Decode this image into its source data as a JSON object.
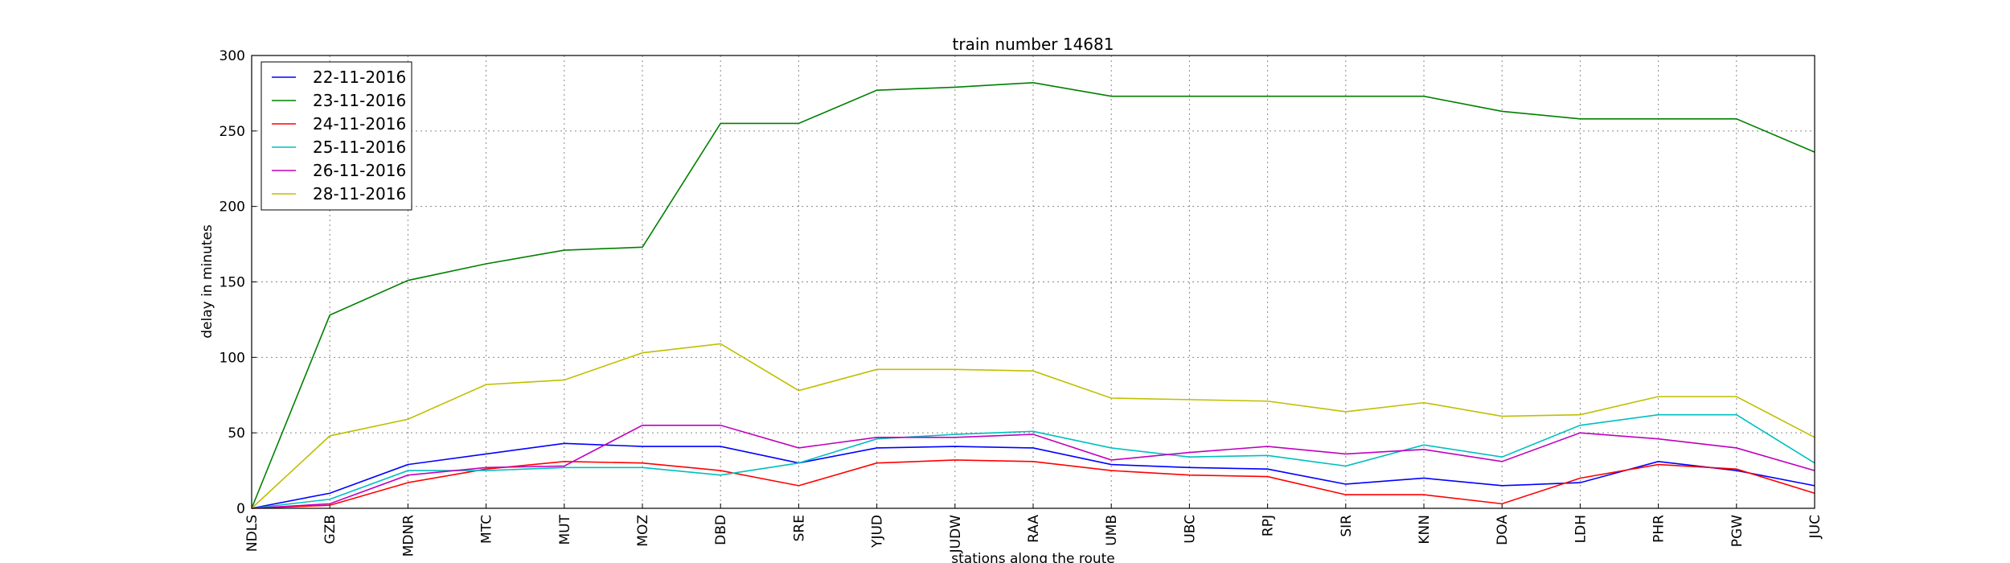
{
  "chart_data": {
    "type": "line",
    "title": "train number 14681",
    "x_label": "stations along the route",
    "y_label": "delay in minutes",
    "categories": [
      "NDLS",
      "GZB",
      "MDNR",
      "MTC",
      "MUT",
      "MOZ",
      "DBD",
      "SRE",
      "YJUD",
      "JUDW",
      "RAA",
      "UMB",
      "UBC",
      "RPJ",
      "SIR",
      "KNN",
      "DOA",
      "LDH",
      "PHR",
      "PGW",
      "JUC"
    ],
    "series": [
      {
        "name": "22-11-2016",
        "color": "#0000ff",
        "values": [
          0,
          10,
          29,
          36,
          43,
          41,
          41,
          30,
          40,
          41,
          40,
          29,
          27,
          26,
          16,
          20,
          15,
          17,
          31,
          25,
          15
        ]
      },
      {
        "name": "23-11-2016",
        "color": "#008000",
        "values": [
          0,
          128,
          151,
          162,
          171,
          173,
          255,
          255,
          277,
          279,
          282,
          273,
          273,
          273,
          273,
          273,
          263,
          258,
          258,
          258,
          236
        ]
      },
      {
        "name": "24-11-2016",
        "color": "#ff0000",
        "values": [
          0,
          2,
          17,
          26,
          31,
          30,
          25,
          15,
          30,
          32,
          31,
          25,
          22,
          21,
          9,
          9,
          3,
          20,
          29,
          26,
          10
        ]
      },
      {
        "name": "25-11-2016",
        "color": "#00bfbf",
        "values": [
          0,
          6,
          25,
          25,
          27,
          27,
          22,
          30,
          46,
          49,
          51,
          40,
          34,
          35,
          28,
          42,
          34,
          55,
          62,
          62,
          30
        ]
      },
      {
        "name": "26-11-2016",
        "color": "#bf00bf",
        "values": [
          0,
          3,
          22,
          27,
          28,
          55,
          55,
          40,
          47,
          47,
          49,
          32,
          37,
          41,
          36,
          39,
          31,
          50,
          46,
          40,
          25
        ]
      },
      {
        "name": "28-11-2016",
        "color": "#bfbf00",
        "values": [
          0,
          48,
          59,
          82,
          85,
          103,
          109,
          78,
          92,
          92,
          91,
          73,
          72,
          71,
          64,
          70,
          61,
          62,
          74,
          74,
          47
        ]
      }
    ],
    "ylim": [
      0,
      300
    ],
    "yticks": [
      0,
      50,
      100,
      150,
      200,
      250,
      300
    ],
    "grid": true,
    "legend": "upper left"
  }
}
